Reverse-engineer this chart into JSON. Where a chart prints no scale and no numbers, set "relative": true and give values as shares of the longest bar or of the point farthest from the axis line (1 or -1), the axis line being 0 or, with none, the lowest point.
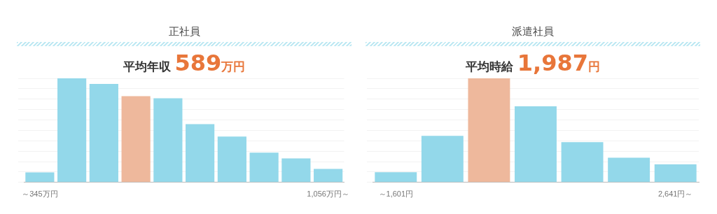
{
  "chart_data": [
    {
      "type": "bar",
      "title": "正社員",
      "subtitle": "平均年収 589万円",
      "relative": true,
      "grid": "y",
      "categories": [
        "～345万円",
        null,
        null,
        null,
        null,
        null,
        null,
        null,
        null,
        "1,056万円～"
      ],
      "values": [
        0.096,
        1,
        0.946,
        0.829,
        0.808,
        0.559,
        0.441,
        0.286,
        0.23,
        0.129
      ],
      "colors": [
        "#93d8ea",
        "#93d8ea",
        "#93d8ea",
        "#eeb89c",
        "#93d8ea",
        "#93d8ea",
        "#93d8ea",
        "#93d8ea",
        "#93d8ea",
        "#93d8ea"
      ]
    },
    {
      "type": "bar",
      "title": "派遣社員",
      "subtitle": "平均時給 1,987円",
      "relative": true,
      "grid": "y",
      "categories": [
        "～1,601円",
        null,
        null,
        null,
        null,
        null,
        "2,641円～"
      ],
      "values": [
        0.097,
        0.447,
        1,
        0.732,
        0.387,
        0.238,
        0.173
      ],
      "colors": [
        "#93d8ea",
        "#93d8ea",
        "#eeb89c",
        "#93d8ea",
        "#93d8ea",
        "#93d8ea",
        "#93d8ea"
      ]
    }
  ]
}
